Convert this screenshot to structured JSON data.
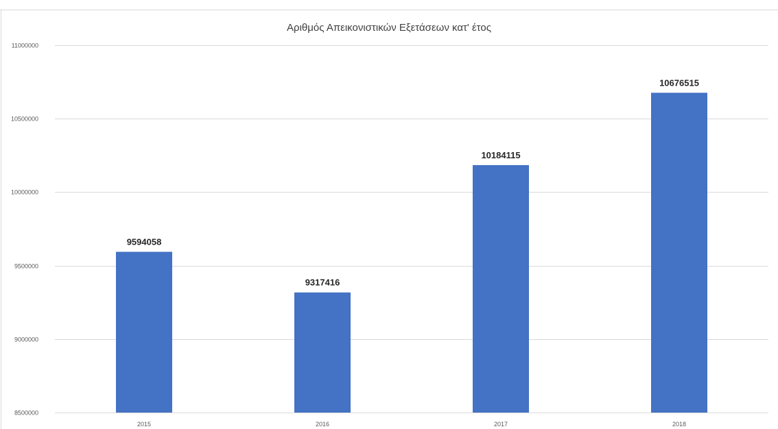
{
  "chart_data": {
    "type": "bar",
    "title": "Αριθμός Απεικονιστικών Εξετάσεων κατ' έτος",
    "xlabel": "",
    "ylabel": "",
    "categories": [
      "2015",
      "2016",
      "2017",
      "2018"
    ],
    "series": [
      {
        "values": [
          9594058,
          9317416,
          10184115,
          10676515
        ]
      }
    ],
    "data_labels": [
      "9594058",
      "9317416",
      "10184115",
      "10676515"
    ],
    "ylim": [
      8500000,
      11000000
    ],
    "yticks": [
      8500000,
      9000000,
      9500000,
      10000000,
      10500000,
      11000000
    ],
    "ytick_labels": [
      "8500000",
      "9000000",
      "9500000",
      "10000000",
      "10500000",
      "11000000"
    ],
    "grid": true,
    "legend": "none",
    "colors": {
      "bar": "#4472c4",
      "grid": "#d9d9d9",
      "axis_text": "#595959",
      "title_text": "#404040",
      "label_text": "#262626"
    }
  }
}
